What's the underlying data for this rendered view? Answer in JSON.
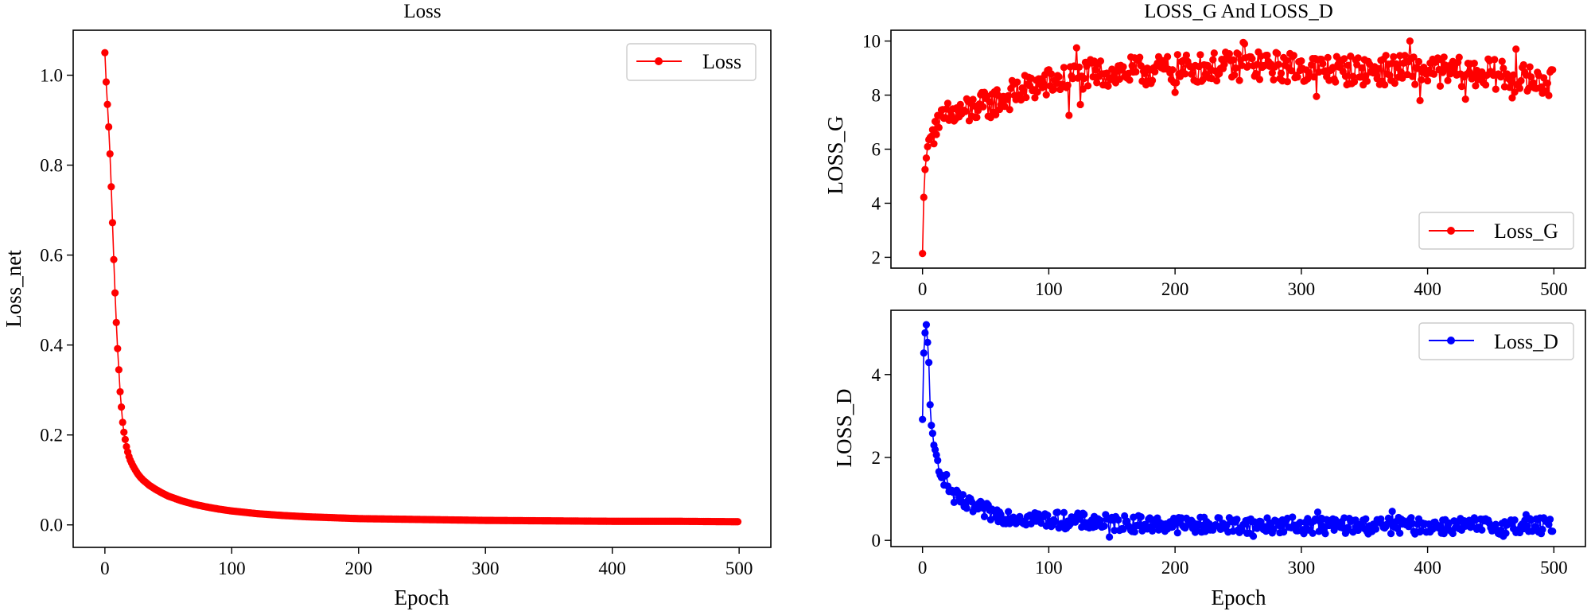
{
  "chart_data": [
    {
      "type": "line",
      "title": "Loss",
      "xlabel": "Epoch",
      "ylabel": "Loss_net",
      "xlim": [
        -25,
        525
      ],
      "ylim": [
        -0.05,
        1.1
      ],
      "xticks": [
        0,
        100,
        200,
        300,
        400,
        500
      ],
      "yticks": [
        0.0,
        0.2,
        0.4,
        0.6,
        0.8,
        1.0
      ],
      "ytick_labels": [
        "0.0",
        "0.2",
        "0.4",
        "0.6",
        "0.8",
        "1.0"
      ],
      "grid": false,
      "legend": "top-right",
      "series": [
        {
          "name": "Loss",
          "color": "#ff0000",
          "marker": "circle",
          "points": [
            [
              0,
              1.05
            ],
            [
              1,
              0.985
            ],
            [
              2,
              0.935
            ],
            [
              3,
              0.885
            ],
            [
              4,
              0.825
            ],
            [
              5,
              0.752
            ],
            [
              6,
              0.672
            ],
            [
              7,
              0.59
            ],
            [
              8,
              0.516
            ],
            [
              9,
              0.45
            ],
            [
              10,
              0.392
            ],
            [
              11,
              0.345
            ],
            [
              12,
              0.296
            ],
            [
              13,
              0.262
            ],
            [
              14,
              0.228
            ],
            [
              15,
              0.206
            ],
            [
              16,
              0.19
            ],
            [
              17,
              0.174
            ],
            [
              18,
              0.162
            ],
            [
              19,
              0.152
            ],
            [
              20,
              0.144
            ],
            [
              22,
              0.132
            ],
            [
              24,
              0.122
            ],
            [
              26,
              0.113
            ],
            [
              28,
              0.106
            ],
            [
              30,
              0.1
            ],
            [
              35,
              0.088
            ],
            [
              40,
              0.079
            ],
            [
              45,
              0.071
            ],
            [
              50,
              0.064
            ],
            [
              60,
              0.054
            ],
            [
              70,
              0.046
            ],
            [
              80,
              0.04
            ],
            [
              90,
              0.035
            ],
            [
              100,
              0.031
            ],
            [
              120,
              0.025
            ],
            [
              140,
              0.021
            ],
            [
              160,
              0.018
            ],
            [
              180,
              0.016
            ],
            [
              200,
              0.014
            ],
            [
              250,
              0.012
            ],
            [
              300,
              0.01
            ],
            [
              350,
              0.009
            ],
            [
              400,
              0.008
            ],
            [
              450,
              0.008
            ],
            [
              499,
              0.007
            ]
          ]
        }
      ]
    },
    {
      "type": "line",
      "title": "LOSS_G  And  LOSS_D",
      "xlabel": "",
      "ylabel": "LOSS_G",
      "xlim": [
        -25,
        525
      ],
      "ylim": [
        1.6,
        10.4
      ],
      "xticks": [
        0,
        100,
        200,
        300,
        400,
        500
      ],
      "yticks": [
        2,
        4,
        6,
        8,
        10
      ],
      "ytick_labels": [
        "2",
        "4",
        "6",
        "8",
        "10"
      ],
      "grid": false,
      "legend": "bottom-right",
      "series": [
        {
          "name": "Loss_G",
          "color": "#ff0000",
          "marker": "circle",
          "points": [
            [
              0,
              2.1
            ],
            [
              1,
              4.3
            ],
            [
              2,
              5.3
            ],
            [
              3,
              5.6
            ],
            [
              4,
              6.1
            ],
            [
              5,
              6.3
            ],
            [
              6,
              6.5
            ],
            [
              8,
              6.6
            ],
            [
              10,
              6.8
            ],
            [
              12,
              6.9
            ],
            [
              15,
              7.0
            ],
            [
              20,
              7.2
            ],
            [
              25,
              7.3
            ],
            [
              30,
              7.35
            ],
            [
              40,
              7.5
            ],
            [
              50,
              7.6
            ],
            [
              60,
              7.8
            ],
            [
              70,
              8.0
            ],
            [
              80,
              8.2
            ],
            [
              90,
              8.35
            ],
            [
              100,
              8.45
            ],
            [
              110,
              8.55
            ],
            [
              115,
              8.6
            ],
            [
              120,
              8.7
            ],
            [
              140,
              8.8
            ],
            [
              160,
              8.85
            ],
            [
              200,
              8.95
            ],
            [
              240,
              9.05
            ],
            [
              260,
              9.1
            ],
            [
              300,
              9.0
            ],
            [
              350,
              8.9
            ],
            [
              380,
              8.95
            ],
            [
              400,
              8.9
            ],
            [
              450,
              8.8
            ],
            [
              499,
              8.4
            ]
          ],
          "noise": 0.55,
          "dips": [
            [
              13,
              6.8
            ],
            [
              37,
              7.05
            ],
            [
              116,
              7.25
            ],
            [
              125,
              7.65
            ],
            [
              200,
              8.1
            ],
            [
              312,
              7.95
            ],
            [
              394,
              7.8
            ],
            [
              430,
              7.85
            ],
            [
              467,
              7.9
            ]
          ],
          "peaks": [
            [
              122,
              9.75
            ],
            [
              254,
              9.95
            ],
            [
              386,
              10.0
            ],
            [
              255,
              9.9
            ],
            [
              470,
              9.7
            ]
          ]
        }
      ]
    },
    {
      "type": "line",
      "title": "",
      "xlabel": "Epoch",
      "ylabel": "LOSS_D",
      "xlim": [
        -25,
        525
      ],
      "ylim": [
        -0.15,
        5.55
      ],
      "xticks": [
        0,
        100,
        200,
        300,
        400,
        500
      ],
      "yticks": [
        0,
        2,
        4
      ],
      "ytick_labels": [
        "0",
        "2",
        "4"
      ],
      "grid": false,
      "legend": "top-right",
      "series": [
        {
          "name": "Loss_D",
          "color": "#0000ff",
          "marker": "circle",
          "points": [
            [
              0,
              2.9
            ],
            [
              1,
              4.5
            ],
            [
              2,
              5.0
            ],
            [
              3,
              5.2
            ],
            [
              4,
              4.8
            ],
            [
              5,
              4.3
            ],
            [
              6,
              3.25
            ],
            [
              7,
              2.75
            ],
            [
              8,
              2.4
            ],
            [
              10,
              2.1
            ],
            [
              12,
              1.9
            ],
            [
              14,
              1.75
            ],
            [
              16,
              1.6
            ],
            [
              18,
              1.45
            ],
            [
              20,
              1.35
            ],
            [
              22,
              1.2
            ],
            [
              25,
              1.05
            ],
            [
              30,
              0.95
            ],
            [
              35,
              0.85
            ],
            [
              40,
              0.8
            ],
            [
              50,
              0.7
            ],
            [
              60,
              0.62
            ],
            [
              80,
              0.55
            ],
            [
              100,
              0.5
            ],
            [
              150,
              0.42
            ],
            [
              200,
              0.38
            ],
            [
              300,
              0.36
            ],
            [
              400,
              0.35
            ],
            [
              499,
              0.35
            ]
          ],
          "noise": 0.2,
          "dips": [
            [
              148,
              0.08
            ],
            [
              262,
              0.1
            ],
            [
              460,
              0.1
            ]
          ],
          "peaks": [
            [
              313,
              0.68
            ],
            [
              372,
              0.7
            ],
            [
              478,
              0.62
            ]
          ]
        }
      ]
    }
  ]
}
